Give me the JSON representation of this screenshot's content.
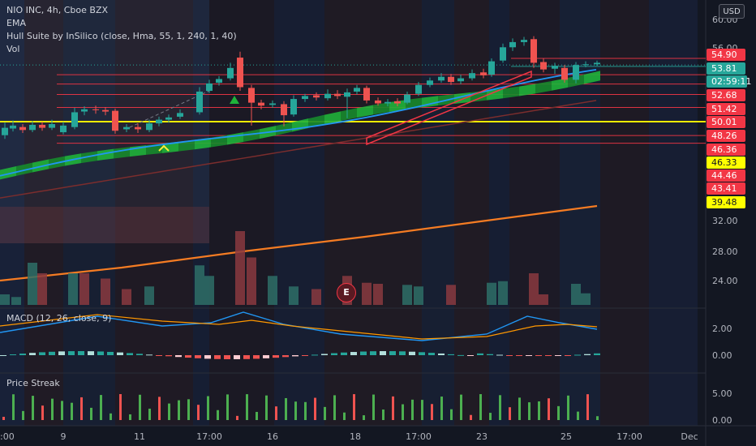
{
  "legend": {
    "symbol": "NIO INC, 4h, Cboe BZX",
    "ema": "EMA",
    "hull": "Hull Suite by InSilico (close, Hma, 55, 1, 240, 1, 40)",
    "vol": "Vol",
    "macd": "MACD (12, 26, close, 9)",
    "streak": "Price Streak"
  },
  "currency_button": "USD",
  "earnings_badge": "E",
  "colors": {
    "background": "#131722",
    "up": "#26a69a",
    "down": "#ef5350",
    "hull_up": "#1fb33a",
    "level_line": "#f23645",
    "support_line": "#ffff00",
    "ema": "#2196f3",
    "trend": "#f57c23",
    "macd_signal": "#ff9800"
  },
  "price_axis": {
    "ticks": [
      "60.00",
      "56.00",
      "32.00",
      "28.00",
      "24.00"
    ],
    "labels": [
      {
        "text": "54.90",
        "color": "#f23645",
        "value": 54.9
      },
      {
        "text": "53.81",
        "color": "#26a69a",
        "value": 53.81
      },
      {
        "text": "02:59:11",
        "color": "#26a69a",
        "value": 52.98
      },
      {
        "text": "52.68",
        "color": "#f23645",
        "value": 52.68
      },
      {
        "text": "51.42",
        "color": "#f23645",
        "value": 51.42
      },
      {
        "text": "50.01",
        "color": "#f23645",
        "value": 50.01
      },
      {
        "text": "48.26",
        "color": "#f23645",
        "value": 48.26
      },
      {
        "text": "46.36",
        "color": "#f23645",
        "value": 46.36
      },
      {
        "text": "46.33",
        "color": "#ffff00",
        "value": 46.33
      },
      {
        "text": "44.46",
        "color": "#f23645",
        "value": 44.46
      },
      {
        "text": "43.41",
        "color": "#f23645",
        "value": 43.41
      },
      {
        "text": "39.48",
        "color": "#ffff00",
        "value": 39.48
      }
    ]
  },
  "macd_axis": {
    "ticks": [
      "2.00",
      "0.00"
    ]
  },
  "streak_axis": {
    "ticks": [
      "5.00",
      "0.00"
    ]
  },
  "time_axis": {
    "labels": [
      ":00",
      "9",
      "11",
      "17:00",
      "16",
      "18",
      "17:00",
      "23",
      "25",
      "17:00",
      "Dec"
    ]
  }
}
